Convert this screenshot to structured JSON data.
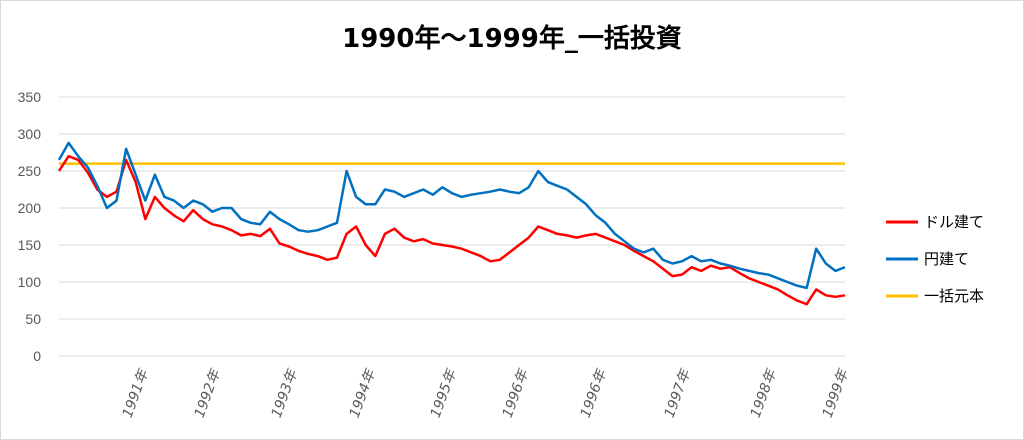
{
  "chart_data": {
    "type": "line",
    "title": "1990年～1999年_一括投資",
    "xlabel": "",
    "ylabel": "",
    "ylim": [
      0,
      350
    ],
    "yticks": [
      0,
      50,
      100,
      150,
      200,
      250,
      300,
      350
    ],
    "x_tick_labels": [
      "1991年",
      "1992年",
      "1993年",
      "1994年",
      "1995年",
      "1996年",
      "1996年",
      "1997年",
      "1998年",
      "1999年"
    ],
    "grid": true,
    "legend_position": "right",
    "series": [
      {
        "name": "ドル建て",
        "color": "#ff0000",
        "values": [
          250,
          270,
          265,
          248,
          225,
          215,
          222,
          265,
          235,
          185,
          215,
          200,
          190,
          182,
          197,
          185,
          178,
          175,
          170,
          163,
          165,
          162,
          172,
          152,
          148,
          142,
          138,
          135,
          130,
          133,
          165,
          175,
          150,
          135,
          165,
          172,
          160,
          155,
          158,
          152,
          150,
          148,
          145,
          140,
          135,
          128,
          130,
          140,
          150,
          160,
          175,
          170,
          165,
          163,
          160,
          163,
          165,
          160,
          155,
          150,
          142,
          135,
          128,
          118,
          108,
          110,
          120,
          115,
          122,
          118,
          120,
          112,
          105,
          100,
          95,
          90,
          82,
          75,
          70,
          90,
          82,
          80,
          82
        ]
      },
      {
        "name": "円建て",
        "color": "#0070c0",
        "values": [
          265,
          288,
          270,
          255,
          230,
          200,
          210,
          280,
          245,
          210,
          245,
          215,
          210,
          200,
          210,
          205,
          195,
          200,
          200,
          185,
          180,
          178,
          195,
          185,
          178,
          170,
          168,
          170,
          175,
          180,
          250,
          215,
          205,
          205,
          225,
          222,
          215,
          220,
          225,
          218,
          228,
          220,
          215,
          218,
          220,
          222,
          225,
          222,
          220,
          228,
          250,
          235,
          230,
          225,
          215,
          205,
          190,
          180,
          165,
          155,
          145,
          140,
          145,
          130,
          125,
          128,
          135,
          128,
          130,
          125,
          122,
          118,
          115,
          112,
          110,
          105,
          100,
          95,
          92,
          145,
          125,
          115,
          120
        ]
      },
      {
        "name": "一括元本",
        "color": "#ffc000",
        "values": [
          260,
          260
        ]
      }
    ]
  }
}
